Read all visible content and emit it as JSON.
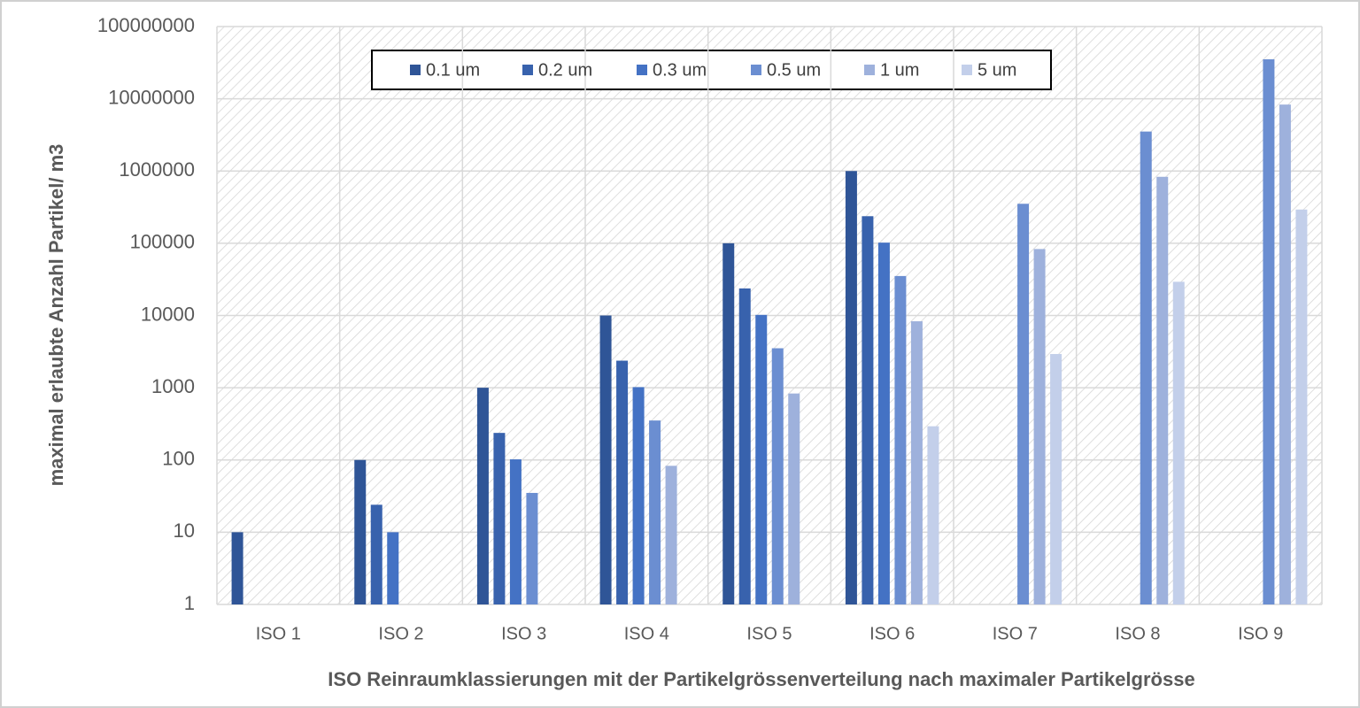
{
  "chart_data": {
    "type": "bar",
    "y_label": "maximal  erlaubte Anzahl Partikel/ m3",
    "x_label": "ISO Reinraumklassierungen mit der Partikelgrössenverteilung nach maximaler Partikelgrösse",
    "categories": [
      "ISO 1",
      "ISO 2",
      "ISO 3",
      "ISO 4",
      "ISO 5",
      "ISO 6",
      "ISO 7",
      "ISO 8",
      "ISO 9"
    ],
    "series": [
      {
        "name": "0.1 um",
        "color": "#2f5597",
        "values": [
          10,
          100,
          1000,
          10000,
          100000,
          1000000,
          null,
          null,
          null
        ]
      },
      {
        "name": "0.2 um",
        "color": "#3862ad",
        "values": [
          null,
          24,
          237,
          2370,
          23700,
          237000,
          null,
          null,
          null
        ]
      },
      {
        "name": "0.3 um",
        "color": "#4472c4",
        "values": [
          null,
          10,
          102,
          1020,
          10200,
          102000,
          null,
          null,
          null
        ]
      },
      {
        "name": "0.5 um",
        "color": "#6b8ed1",
        "values": [
          null,
          null,
          35,
          352,
          3520,
          35200,
          352000,
          3520000,
          35200000
        ]
      },
      {
        "name": "1 um",
        "color": "#9eb1dc",
        "values": [
          null,
          null,
          null,
          83,
          832,
          8320,
          83200,
          832000,
          8320000
        ]
      },
      {
        "name": "5 um",
        "color": "#c3cfea",
        "values": [
          null,
          null,
          null,
          null,
          null,
          293,
          2930,
          29300,
          293000
        ]
      }
    ],
    "ylim": [
      1,
      100000000
    ],
    "yticks": [
      1,
      10,
      100,
      1000,
      10000,
      100000,
      1000000,
      10000000,
      100000000
    ],
    "log_scale": true,
    "grid": true,
    "legend_position": "top"
  }
}
